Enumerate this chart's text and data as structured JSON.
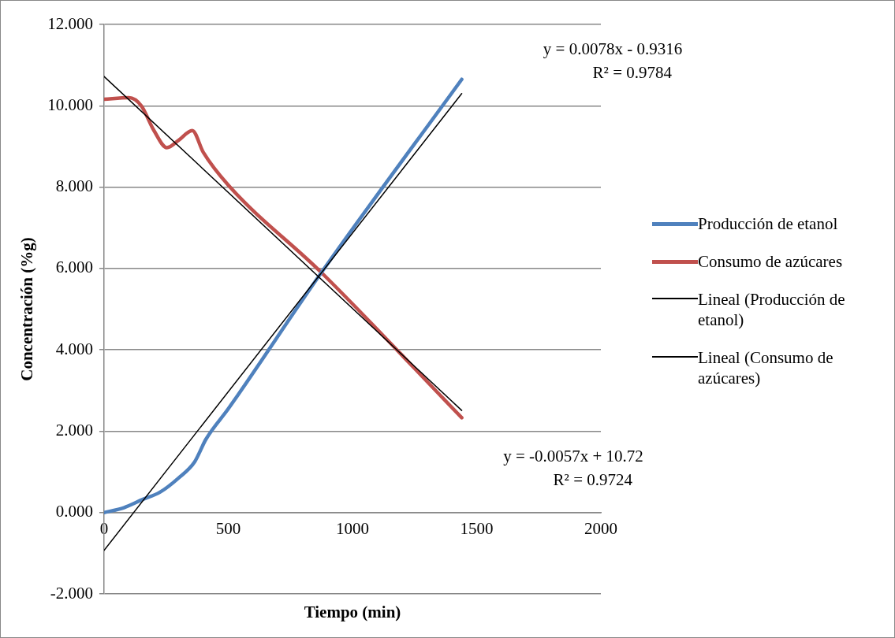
{
  "chart_data": {
    "type": "line",
    "xlabel": "Tiempo (min)",
    "ylabel": "Concentración (%g)",
    "xlim": [
      0,
      2000
    ],
    "xticks": [
      0,
      500,
      1000,
      1500,
      2000
    ],
    "ylim": [
      -2,
      12
    ],
    "yticks": [
      {
        "value": -2,
        "label": "-2.000"
      },
      {
        "value": 0,
        "label": "0.000"
      },
      {
        "value": 2,
        "label": "2.000"
      },
      {
        "value": 4,
        "label": "4.000"
      },
      {
        "value": 6,
        "label": "6.000"
      },
      {
        "value": 8,
        "label": "8.000"
      },
      {
        "value": 10,
        "label": "10.000"
      },
      {
        "value": 12,
        "label": "12.000"
      }
    ],
    "grid": "y",
    "legend": "right",
    "marker": "none",
    "line_style": "solid",
    "series": [
      {
        "name": "Producción de etanol",
        "color": "#4f81bd",
        "x": [
          0,
          80,
          155,
          225,
          300,
          365,
          410,
          500,
          875,
          1440
        ],
        "values": [
          0,
          0.12,
          0.32,
          0.5,
          0.85,
          1.25,
          1.8,
          2.55,
          5.9,
          10.65
        ]
      },
      {
        "name": "Consumo de azúcares",
        "color": "#c0504d",
        "x": [
          0,
          100,
          150,
          200,
          253,
          300,
          355,
          400,
          500,
          875,
          1440
        ],
        "values": [
          10.16,
          10.2,
          10.0,
          9.4,
          8.97,
          9.15,
          9.39,
          8.85,
          8.05,
          5.9,
          2.33
        ]
      },
      {
        "name": "Lineal (Producción de etanol)",
        "color": "#000000",
        "x": [
          0,
          1440
        ],
        "values": [
          -0.93,
          10.3
        ]
      },
      {
        "name": "Lineal (Consumo de azúcares)",
        "color": "#000000",
        "x": [
          0,
          1440
        ],
        "values": [
          10.72,
          2.51
        ]
      }
    ],
    "annotations": [
      "y = 0.0078x - 0.9316\nR² = 0.9784",
      "y = -0.0057x + 10.72\nR² = 0.9724"
    ]
  }
}
